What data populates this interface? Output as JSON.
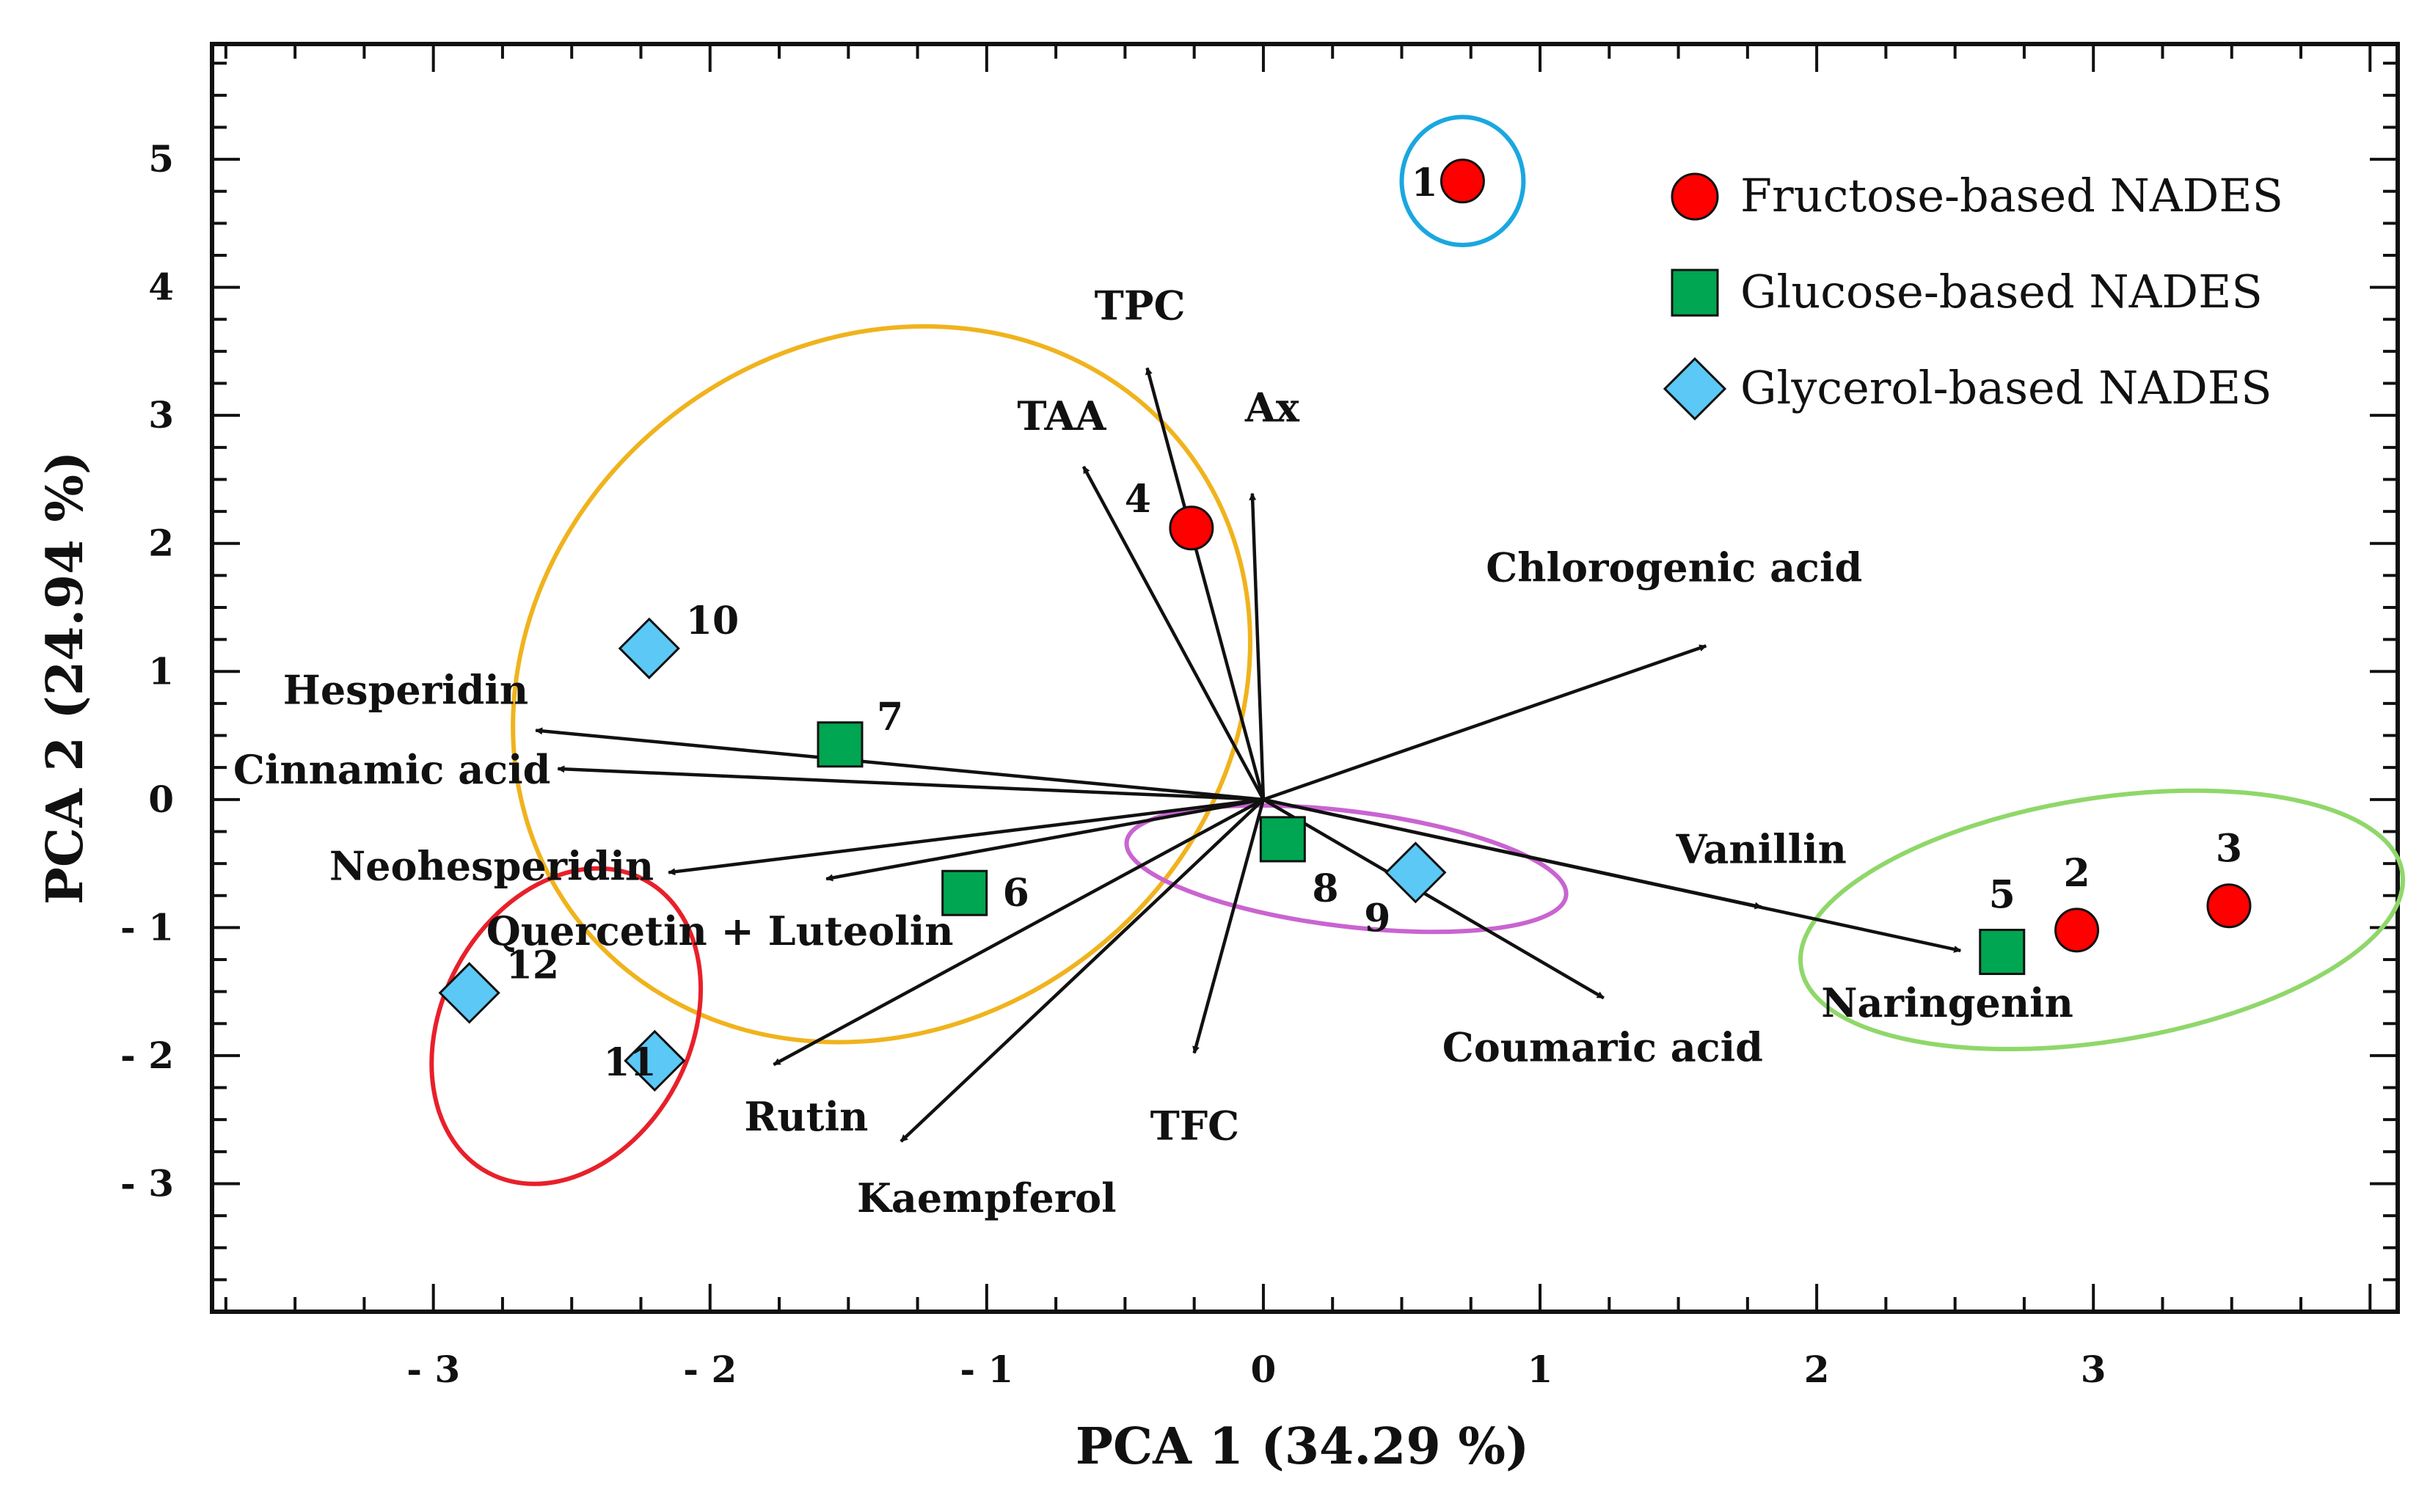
{
  "chart_data": {
    "type": "scatter",
    "subtype": "pca-biplot",
    "xlabel": "PCA 1 (34.29 %)",
    "ylabel": "PCA 2 (24.94 %)",
    "xlim": [
      -3.8,
      4.1
    ],
    "ylim": [
      -4.0,
      5.9
    ],
    "x_ticks": [
      {
        "value": -3,
        "label": "- 3"
      },
      {
        "value": -2,
        "label": "- 2"
      },
      {
        "value": -1,
        "label": "- 1"
      },
      {
        "value": 0,
        "label": "0"
      },
      {
        "value": 1,
        "label": "1"
      },
      {
        "value": 2,
        "label": "2"
      },
      {
        "value": 3,
        "label": "3"
      }
    ],
    "y_ticks": [
      {
        "value": -3,
        "label": "- 3"
      },
      {
        "value": -2,
        "label": "- 2"
      },
      {
        "value": -1,
        "label": "- 1"
      },
      {
        "value": 0,
        "label": "0"
      },
      {
        "value": 1,
        "label": "1"
      },
      {
        "value": 2,
        "label": "2"
      },
      {
        "value": 3,
        "label": "3"
      },
      {
        "value": 4,
        "label": "4"
      },
      {
        "value": 5,
        "label": "5"
      }
    ],
    "legend": {
      "position": "top-right",
      "entries": [
        {
          "series": "fructose",
          "label": "Fructose-based NADES"
        },
        {
          "series": "glucose",
          "label": "Glucose-based NADES"
        },
        {
          "series": "glycerol",
          "label": "Glycerol-based NADES"
        }
      ]
    },
    "series": [
      {
        "name": "fructose",
        "label": "Fructose-based NADES",
        "marker": "circle",
        "color": "#ff0000",
        "points": [
          {
            "id": "1",
            "label": "1",
            "x": 0.72,
            "y": 4.83,
            "label_anchor": "left"
          },
          {
            "id": "2",
            "label": "2",
            "x": 2.94,
            "y": -1.02,
            "label_anchor": "above"
          },
          {
            "id": "3",
            "label": "3",
            "x": 3.49,
            "y": -0.83,
            "label_anchor": "above"
          },
          {
            "id": "4",
            "label": "4",
            "x": -0.26,
            "y": 2.12,
            "label_anchor": "upper-left"
          }
        ]
      },
      {
        "name": "glucose",
        "label": "Glucose-based NADES",
        "marker": "square",
        "color": "#00a651",
        "points": [
          {
            "id": "5",
            "label": "5",
            "x": 2.67,
            "y": -1.19,
            "label_anchor": "above"
          },
          {
            "id": "6",
            "label": "6",
            "x": -1.08,
            "y": -0.73,
            "label_anchor": "right"
          },
          {
            "id": "7",
            "label": "7",
            "x": -1.53,
            "y": 0.43,
            "label_anchor": "upper-right"
          },
          {
            "id": "8",
            "label": "8",
            "x": 0.07,
            "y": -0.31,
            "label_anchor": "lower-right"
          }
        ]
      },
      {
        "name": "glycerol",
        "label": "Glycerol-based NADES",
        "marker": "diamond",
        "color": "#5bc8f5",
        "points": [
          {
            "id": "9",
            "label": "9",
            "x": 0.55,
            "y": -0.57,
            "label_anchor": "lower-left"
          },
          {
            "id": "10",
            "label": "10",
            "x": -2.22,
            "y": 1.18,
            "label_anchor": "upper-right"
          },
          {
            "id": "11",
            "label": "11",
            "x": -2.2,
            "y": -2.04,
            "label_anchor": "left"
          },
          {
            "id": "12",
            "label": "12",
            "x": -2.87,
            "y": -1.51,
            "label_anchor": "upper-right"
          }
        ]
      }
    ],
    "loadings": {
      "origin": [
        0.0,
        0.0
      ],
      "vectors": [
        {
          "name": "TPC",
          "x": -0.42,
          "y": 3.37
        },
        {
          "name": "TAA",
          "x": -0.65,
          "y": 2.6
        },
        {
          "name": "Ax",
          "x": -0.04,
          "y": 2.39
        },
        {
          "name": "Chlorogenic acid",
          "x": 1.6,
          "y": 1.2
        },
        {
          "name": "Hesperidin",
          "x": -2.63,
          "y": 0.54
        },
        {
          "name": "Cinnamic acid",
          "x": -2.55,
          "y": 0.24
        },
        {
          "name": "Neohesperidin",
          "x": -2.15,
          "y": -0.57
        },
        {
          "name": "Quercetin + Luteolin",
          "x": -1.58,
          "y": -0.62
        },
        {
          "name": "Rutin",
          "x": -1.77,
          "y": -2.07
        },
        {
          "name": "Kaempferol",
          "x": -1.31,
          "y": -2.67
        },
        {
          "name": "TFC",
          "x": -0.25,
          "y": -1.98
        },
        {
          "name": "Coumaric acid",
          "x": 1.23,
          "y": -1.55
        },
        {
          "name": "Vanillin",
          "x": 1.8,
          "y": -0.84
        },
        {
          "name": "Naringenin",
          "x": 2.52,
          "y": -1.18
        }
      ]
    },
    "groupings": [
      {
        "name": "group-sample-1",
        "color": "#1aa7e0",
        "cx": 0.72,
        "cy": 4.83,
        "rx": 0.22,
        "ry": 0.5,
        "angle": 0
      },
      {
        "name": "group-samples-4-6-7-10",
        "color": "#f0b31d",
        "cx": -1.38,
        "cy": 0.9,
        "rx": 1.39,
        "ry": 2.66,
        "angle": -38
      },
      {
        "name": "group-samples-8-9",
        "color": "#c964d0",
        "cx": 0.3,
        "cy": -0.54,
        "rx": 0.8,
        "ry": 0.45,
        "angle": 7
      },
      {
        "name": "group-samples-11-12",
        "color": "#e8202a",
        "cx": -2.52,
        "cy": -1.77,
        "rx": 0.6,
        "ry": 0.97,
        "angle": -62
      },
      {
        "name": "group-samples-2-3-5",
        "color": "#8fd76a",
        "cx": 3.03,
        "cy": -0.94,
        "rx": 1.1,
        "ry": 0.95,
        "angle": -9
      }
    ]
  }
}
